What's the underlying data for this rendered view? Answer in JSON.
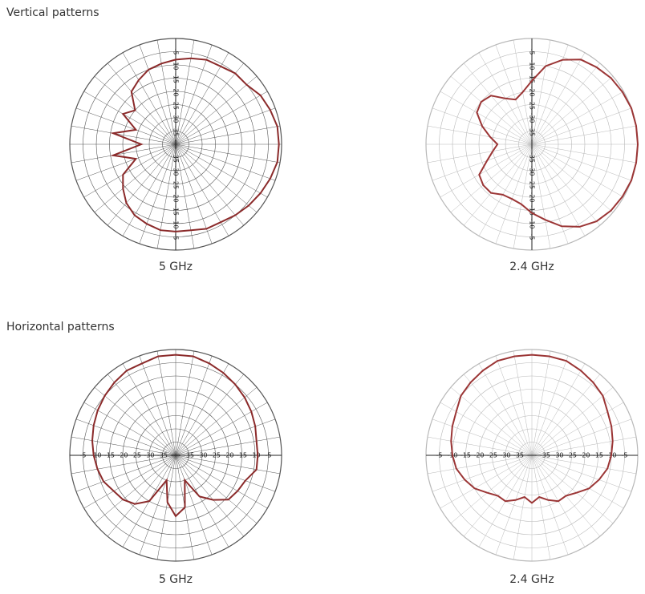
{
  "headings": [
    "Vertical patterns",
    "Horizontal patterns"
  ],
  "chart_data": [
    {
      "type": "polar",
      "caption": "5 GHz",
      "tick_axis": "vertical",
      "color": "#8b2a2a",
      "rlim": [
        -40,
        0
      ],
      "rticks": [
        -35,
        -30,
        -25,
        -20,
        -15,
        -10,
        -5
      ],
      "theta": [
        0,
        10,
        20,
        30,
        40,
        50,
        60,
        70,
        80,
        90,
        100,
        110,
        120,
        130,
        140,
        150,
        160,
        170,
        180,
        190,
        200,
        210,
        220,
        230,
        240,
        250,
        260,
        270,
        280,
        290,
        300,
        310,
        320,
        330,
        340,
        350
      ],
      "values": [
        -8,
        -7,
        -6,
        -6,
        -5,
        -5,
        -3,
        -2,
        -1,
        -1,
        -1,
        -2,
        -3,
        -4,
        -5,
        -6,
        -6,
        -7,
        -7,
        -7,
        -8,
        -9,
        -11,
        -14,
        -17,
        -24,
        -16,
        -27,
        -16,
        -24,
        -17,
        -20,
        -14,
        -12,
        -10,
        -9
      ]
    },
    {
      "type": "polar",
      "caption": "2.4 GHz",
      "tick_axis": "vertical",
      "color": "#9b3535",
      "rlim": [
        -40,
        0
      ],
      "rticks": [
        -35,
        -30,
        -25,
        -20,
        -15,
        -10,
        -5
      ],
      "theta": [
        0,
        10,
        20,
        30,
        40,
        50,
        60,
        70,
        80,
        90,
        100,
        110,
        120,
        130,
        140,
        150,
        160,
        170,
        180,
        190,
        200,
        210,
        220,
        230,
        240,
        250,
        260,
        270,
        280,
        290,
        300,
        310,
        320,
        330,
        340,
        350
      ],
      "values": [
        -16,
        -10,
        -6,
        -3,
        -2,
        -1,
        -0.5,
        0,
        0,
        0,
        0,
        0,
        -0.5,
        -1,
        -2,
        -4,
        -7,
        -11,
        -14,
        -17,
        -18,
        -18,
        -16,
        -16,
        -17,
        -22,
        -25,
        -27,
        -24,
        -20,
        -16,
        -15,
        -16,
        -20,
        -22,
        -20
      ]
    },
    {
      "type": "polar",
      "caption": "5 GHz",
      "tick_axis": "horizontal",
      "color": "#8b2a2a",
      "rlim": [
        -40,
        0
      ],
      "rticks": [
        -35,
        -30,
        -25,
        -20,
        -15,
        -10,
        -5
      ],
      "theta": [
        0,
        10,
        20,
        30,
        40,
        50,
        60,
        70,
        80,
        90,
        100,
        110,
        120,
        130,
        140,
        150,
        160,
        170,
        180,
        190,
        200,
        210,
        220,
        230,
        240,
        250,
        260,
        270,
        280,
        290,
        300,
        310,
        320,
        330,
        340,
        350
      ],
      "values": [
        -2,
        -2,
        -3,
        -4,
        -5,
        -6,
        -7,
        -8,
        -9,
        -9,
        -9,
        -12,
        -13,
        -14,
        -18,
        -22,
        -30,
        -20,
        -17,
        -22,
        -30,
        -20,
        -16,
        -14,
        -13,
        -11,
        -10,
        -9,
        -8,
        -7,
        -6,
        -5,
        -4,
        -3,
        -3,
        -2
      ]
    },
    {
      "type": "polar",
      "caption": "2.4 GHz",
      "tick_axis": "horizontal",
      "color": "#9b3535",
      "rlim": [
        -40,
        0
      ],
      "rticks": [
        -35,
        -30,
        -25,
        -20,
        -15,
        -10,
        -5
      ],
      "theta": [
        0,
        10,
        20,
        30,
        40,
        50,
        60,
        70,
        80,
        90,
        100,
        110,
        120,
        130,
        140,
        150,
        160,
        170,
        180,
        190,
        200,
        210,
        220,
        230,
        240,
        250,
        260,
        270,
        280,
        290,
        300,
        310,
        320,
        330,
        340,
        350
      ],
      "values": [
        -2,
        -2,
        -2,
        -3,
        -4,
        -5,
        -7,
        -8,
        -9,
        -10,
        -11,
        -13,
        -15,
        -18,
        -20,
        -20,
        -22,
        -24,
        -22,
        -24,
        -22,
        -20,
        -20,
        -18,
        -15,
        -13,
        -11,
        -10,
        -9,
        -8,
        -7,
        -5,
        -4,
        -3,
        -2,
        -2
      ]
    }
  ]
}
